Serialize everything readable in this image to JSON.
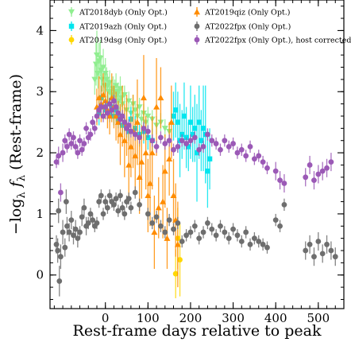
{
  "chart_data": {
    "type": "scatter",
    "xlabel": "Rest-frame days relative to peak",
    "ylabel": "−logλ fλ (Rest-frame)",
    "ylabel_parts": {
      "pre": "−log",
      "sub1": "λ",
      "mid": " f",
      "sub2": "λ",
      "post": " (Rest-frame)"
    },
    "xlim": [
      -130,
      560
    ],
    "ylim": [
      -0.55,
      4.5
    ],
    "x_ticks": [
      0,
      100,
      200,
      300,
      400,
      500
    ],
    "y_ticks": [
      0,
      1,
      2,
      3,
      4
    ],
    "x_tick_labels": [
      "0",
      "100",
      "200",
      "300",
      "400",
      "500"
    ],
    "y_tick_labels": [
      "0",
      "1",
      "2",
      "3",
      "4"
    ],
    "legend_position": "top",
    "series": [
      {
        "name": "AT2018dyb (Only Opt.)",
        "color": "#90ee90",
        "marker": "triangle-down",
        "x": [
          -25,
          -22,
          -20,
          -18,
          -15,
          -12,
          -10,
          -8,
          -5,
          -2,
          0,
          3,
          5,
          8,
          10,
          12,
          15,
          18,
          20,
          22,
          25,
          28,
          30,
          32,
          35,
          38,
          40,
          45,
          50,
          55,
          60,
          65,
          70,
          75,
          80,
          85,
          90,
          95,
          100,
          110,
          120,
          130,
          140,
          150
        ],
        "y": [
          3.2,
          3.45,
          3.6,
          3.3,
          3.5,
          3.55,
          3.35,
          3.2,
          3.4,
          3.1,
          3.3,
          3.2,
          3.1,
          3.0,
          3.15,
          3.0,
          2.95,
          3.05,
          2.9,
          3.0,
          3.1,
          2.95,
          3.0,
          2.85,
          3.05,
          2.9,
          2.8,
          2.95,
          2.7,
          2.85,
          2.65,
          2.8,
          2.7,
          2.6,
          2.75,
          2.55,
          2.65,
          2.5,
          2.6,
          2.55,
          2.45,
          2.5,
          2.4,
          2.35
        ],
        "yerr": [
          0.25,
          0.35,
          0.4,
          0.25,
          0.3,
          0.3,
          0.25,
          0.2,
          0.3,
          0.2,
          0.25,
          0.2,
          0.2,
          0.2,
          0.2,
          0.15,
          0.15,
          0.2,
          0.15,
          0.2,
          0.2,
          0.15,
          0.15,
          0.15,
          0.2,
          0.15,
          0.15,
          0.15,
          0.15,
          0.15,
          0.15,
          0.15,
          0.15,
          0.15,
          0.15,
          0.15,
          0.15,
          0.15,
          0.15,
          0.15,
          0.15,
          0.15,
          0.15,
          0.15
        ]
      },
      {
        "name": "AT2019azh (Only Opt.)",
        "color": "#00e5ee",
        "marker": "square",
        "x": [
          -15,
          -10,
          -5,
          0,
          5,
          10,
          15,
          20,
          25,
          30,
          35,
          40,
          45,
          50,
          55,
          60,
          70,
          80,
          90,
          100,
          110,
          160,
          165,
          170,
          175,
          180,
          185,
          190,
          195,
          200,
          205,
          210,
          215,
          220,
          225,
          230,
          235,
          240,
          245
        ],
        "y": [
          2.65,
          2.9,
          2.75,
          2.7,
          2.8,
          2.65,
          2.75,
          2.6,
          2.7,
          2.55,
          2.6,
          2.45,
          2.5,
          2.4,
          2.35,
          2.55,
          2.4,
          2.3,
          2.35,
          2.25,
          2.2,
          2.6,
          2.7,
          2.5,
          2.2,
          2.3,
          2.6,
          2.25,
          2.1,
          2.5,
          2.3,
          2.4,
          2.0,
          2.5,
          2.2,
          2.4,
          2.3,
          1.7,
          1.9
        ],
        "yerr": [
          0.2,
          0.2,
          0.2,
          0.15,
          0.15,
          0.15,
          0.15,
          0.15,
          0.15,
          0.15,
          0.15,
          0.15,
          0.15,
          0.15,
          0.15,
          0.2,
          0.2,
          0.2,
          0.2,
          0.2,
          0.2,
          0.4,
          0.45,
          0.5,
          0.6,
          0.4,
          0.55,
          0.5,
          0.4,
          0.6,
          0.45,
          0.55,
          0.8,
          0.6,
          0.5,
          0.7,
          0.8,
          0.6,
          0.5
        ]
      },
      {
        "name": "AT2019dsg (Only Opt.)",
        "color": "#ffd700",
        "marker": "circle",
        "x": [
          165,
          170,
          175
        ],
        "y": [
          0.02,
          0.6,
          0.25
        ],
        "yerr": [
          0.4,
          0.5,
          0.6
        ]
      },
      {
        "name": "AT2019qiz (Only Opt.)",
        "color": "#ff8c00",
        "marker": "triangle-up",
        "x": [
          -20,
          -15,
          -10,
          -5,
          0,
          5,
          10,
          15,
          20,
          25,
          30,
          35,
          40,
          45,
          50,
          55,
          60,
          65,
          70,
          75,
          80,
          85,
          90,
          95,
          100,
          105,
          110,
          115,
          120,
          125,
          130,
          135,
          140,
          145,
          150,
          155,
          160,
          165,
          170
        ],
        "y": [
          2.75,
          2.9,
          2.8,
          2.95,
          2.85,
          2.7,
          2.6,
          2.9,
          2.75,
          2.6,
          2.5,
          2.3,
          2.6,
          2.2,
          2.45,
          1.8,
          2.1,
          2.35,
          1.95,
          2.5,
          1.6,
          1.85,
          2.9,
          2.0,
          1.3,
          1.5,
          2.0,
          0.7,
          2.75,
          1.1,
          2.9,
          1.2,
          1.7,
          0.6,
          1.9,
          2.5,
          1.3,
          0.9,
          0.5
        ],
        "yerr": [
          0.3,
          0.35,
          0.3,
          0.35,
          0.3,
          0.3,
          0.3,
          0.4,
          0.35,
          0.4,
          0.35,
          0.5,
          0.5,
          0.6,
          0.5,
          0.6,
          0.5,
          0.6,
          0.6,
          0.7,
          0.6,
          0.6,
          0.7,
          0.6,
          0.6,
          0.7,
          0.6,
          0.6,
          0.8,
          0.5,
          0.5,
          0.6,
          0.6,
          0.5,
          0.6,
          0.6,
          0.6,
          0.6,
          0.7
        ]
      },
      {
        "name": "AT2022fpx (Only Opt.)",
        "color": "#6e6e6e",
        "marker": "circle",
        "x": [
          -115,
          -112,
          -110,
          -108,
          -105,
          -100,
          -95,
          -92,
          -90,
          -85,
          -80,
          -75,
          -70,
          -65,
          -60,
          -55,
          -50,
          -45,
          -40,
          -35,
          -30,
          -25,
          -20,
          -15,
          -10,
          -5,
          0,
          5,
          10,
          15,
          20,
          25,
          30,
          35,
          40,
          45,
          50,
          55,
          60,
          70,
          80,
          100,
          110,
          120,
          130,
          140,
          150,
          160,
          170,
          180,
          190,
          200,
          210,
          220,
          230,
          240,
          250,
          260,
          270,
          280,
          290,
          300,
          310,
          320,
          330,
          340,
          350,
          360,
          370,
          380,
          400,
          410,
          420,
          470,
          480,
          490,
          500,
          510,
          520,
          530,
          540
        ],
        "y": [
          0.5,
          0.4,
          1.05,
          -0.1,
          0.3,
          0.7,
          0.45,
          1.2,
          0.8,
          0.7,
          0.9,
          0.65,
          0.75,
          0.6,
          0.7,
          0.95,
          1.1,
          0.8,
          0.85,
          1.0,
          0.9,
          0.8,
          0.85,
          1.2,
          1.3,
          1.0,
          1.2,
          1.1,
          1.3,
          1.2,
          1.15,
          1.25,
          1.05,
          1.3,
          1.1,
          1.0,
          1.2,
          1.25,
          1.1,
          1.35,
          1.15,
          1.0,
          0.85,
          0.95,
          0.8,
          0.7,
          0.9,
          0.75,
          0.85,
          0.55,
          0.65,
          0.7,
          0.8,
          0.6,
          0.7,
          0.85,
          0.75,
          0.65,
          0.8,
          0.7,
          0.6,
          0.75,
          0.65,
          0.55,
          0.7,
          0.5,
          0.6,
          0.55,
          0.5,
          0.45,
          0.9,
          0.8,
          1.15,
          0.4,
          0.5,
          0.3,
          0.55,
          0.35,
          0.5,
          0.4,
          0.3
        ],
        "yerr": [
          0.15,
          0.2,
          0.2,
          0.25,
          0.2,
          0.2,
          0.15,
          0.2,
          0.15,
          0.15,
          0.15,
          0.15,
          0.15,
          0.15,
          0.1,
          0.15,
          0.15,
          0.15,
          0.1,
          0.1,
          0.1,
          0.1,
          0.1,
          0.1,
          0.1,
          0.1,
          0.1,
          0.1,
          0.1,
          0.1,
          0.1,
          0.1,
          0.1,
          0.1,
          0.1,
          0.1,
          0.1,
          0.1,
          0.1,
          0.1,
          0.1,
          0.1,
          0.1,
          0.1,
          0.1,
          0.1,
          0.1,
          0.1,
          0.1,
          0.1,
          0.1,
          0.1,
          0.1,
          0.1,
          0.1,
          0.1,
          0.1,
          0.1,
          0.1,
          0.1,
          0.1,
          0.1,
          0.1,
          0.1,
          0.1,
          0.1,
          0.1,
          0.1,
          0.1,
          0.1,
          0.1,
          0.1,
          0.1,
          0.15,
          0.15,
          0.15,
          0.15,
          0.15,
          0.15,
          0.15,
          0.15
        ]
      },
      {
        "name": "AT2022fpx (Only Opt.), host corrected",
        "color": "#9b59b6",
        "marker": "circle",
        "x": [
          -115,
          -110,
          -105,
          -100,
          -95,
          -90,
          -85,
          -80,
          -75,
          -70,
          -65,
          -60,
          -55,
          -50,
          -45,
          -40,
          -35,
          -30,
          -25,
          -20,
          -15,
          -10,
          -5,
          0,
          5,
          10,
          15,
          20,
          25,
          30,
          35,
          40,
          45,
          50,
          55,
          60,
          70,
          80,
          90,
          100,
          110,
          120,
          130,
          140,
          150,
          160,
          170,
          180,
          190,
          200,
          210,
          220,
          230,
          240,
          250,
          260,
          270,
          280,
          290,
          300,
          310,
          320,
          330,
          340,
          350,
          360,
          370,
          380,
          400,
          410,
          420,
          470,
          480,
          490,
          500,
          510,
          520,
          530
        ],
        "y": [
          1.85,
          1.95,
          1.35,
          2.0,
          2.2,
          2.1,
          2.3,
          2.15,
          2.25,
          2.1,
          2.0,
          2.2,
          2.05,
          2.15,
          2.4,
          2.25,
          2.3,
          2.5,
          2.4,
          2.6,
          2.7,
          2.75,
          2.6,
          2.75,
          2.65,
          2.8,
          2.7,
          2.85,
          2.75,
          2.65,
          2.55,
          2.6,
          2.5,
          2.4,
          2.45,
          2.35,
          2.3,
          2.25,
          2.4,
          2.35,
          2.2,
          2.1,
          2.25,
          2.15,
          2.2,
          2.05,
          2.1,
          2.2,
          2.15,
          2.2,
          2.25,
          2.05,
          2.1,
          2.3,
          2.2,
          2.15,
          2.05,
          2.2,
          2.1,
          2.15,
          2.0,
          2.05,
          1.95,
          2.1,
          1.9,
          1.95,
          1.85,
          1.75,
          1.7,
          1.55,
          1.5,
          1.6,
          1.8,
          1.55,
          1.65,
          1.7,
          1.75,
          1.85
        ],
        "yerr": [
          0.1,
          0.15,
          0.15,
          0.15,
          0.1,
          0.1,
          0.1,
          0.1,
          0.1,
          0.1,
          0.1,
          0.1,
          0.1,
          0.1,
          0.1,
          0.1,
          0.1,
          0.1,
          0.1,
          0.1,
          0.1,
          0.1,
          0.1,
          0.1,
          0.1,
          0.1,
          0.1,
          0.1,
          0.1,
          0.1,
          0.1,
          0.1,
          0.1,
          0.1,
          0.1,
          0.1,
          0.1,
          0.1,
          0.1,
          0.1,
          0.1,
          0.1,
          0.1,
          0.1,
          0.1,
          0.1,
          0.1,
          0.1,
          0.1,
          0.1,
          0.1,
          0.1,
          0.1,
          0.1,
          0.1,
          0.1,
          0.1,
          0.1,
          0.1,
          0.1,
          0.1,
          0.1,
          0.1,
          0.1,
          0.1,
          0.1,
          0.1,
          0.1,
          0.15,
          0.15,
          0.15,
          0.15,
          0.15,
          0.15,
          0.15,
          0.15,
          0.15,
          0.15
        ]
      }
    ]
  }
}
